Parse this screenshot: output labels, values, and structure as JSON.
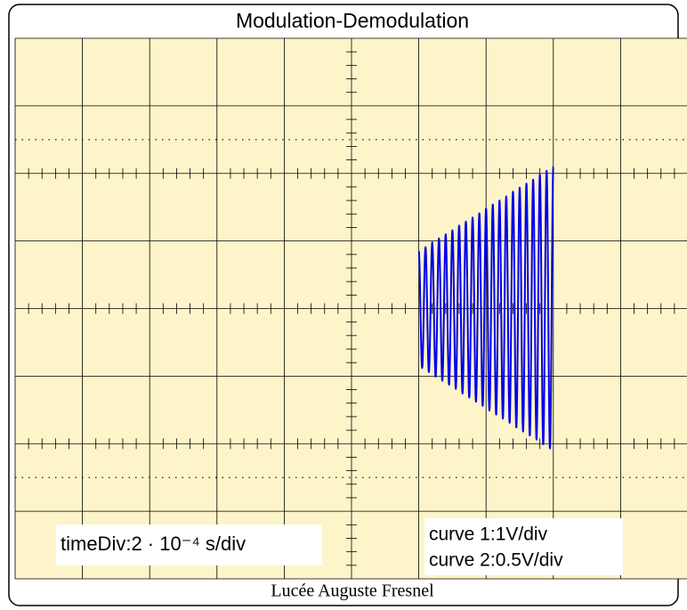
{
  "chart_data": {
    "type": "line",
    "title": "Modulation-Demodulation",
    "footer": "Lucée Auguste Fresnel",
    "annotations": {
      "time_div": "timeDiv:2 · 10⁻⁴ s/div",
      "curve1": "curve 1:1V/div",
      "curve2": "curve 2:0.5V/div"
    },
    "xlim": [
      -5,
      5
    ],
    "ylim": [
      -4,
      4
    ],
    "xticks": [
      -5,
      -4,
      -3,
      -2,
      -1,
      0,
      1,
      2,
      3,
      4,
      5
    ],
    "yticks": [
      -4,
      -3,
      -2,
      -1,
      0,
      1,
      2,
      3,
      4
    ],
    "dotted_levels": [
      -2.5,
      2.5
    ],
    "grid": true,
    "background": "#fdf5c9",
    "x": [
      1,
      1.05,
      1.1,
      1.15,
      1.2,
      1.25,
      1.3,
      1.35,
      1.4,
      1.45,
      1.5,
      1.55,
      1.6,
      1.65,
      1.7,
      1.75,
      1.8,
      1.85,
      1.9,
      1.95,
      2,
      2.05,
      2.1,
      2.15,
      2.2,
      2.25,
      2.3,
      2.35,
      2.4,
      2.45,
      2.5,
      2.55,
      2.6,
      2.65,
      2.7,
      2.75,
      2.8,
      2.85,
      2.9,
      2.95,
      3
    ],
    "series": [
      {
        "color": "#0000ee",
        "values": [
          0.85,
          -0.88,
          0.91,
          -0.94,
          0.98,
          -1.01,
          1.04,
          -1.07,
          1.1,
          -1.13,
          1.16,
          -1.19,
          1.23,
          -1.26,
          1.29,
          -1.32,
          1.35,
          -1.38,
          1.41,
          -1.44,
          1.48,
          -1.51,
          1.54,
          -1.57,
          1.6,
          -1.63,
          1.66,
          -1.69,
          1.73,
          -1.76,
          1.79,
          -1.82,
          1.85,
          -1.88,
          1.91,
          -1.94,
          1.98,
          -2.01,
          2.04,
          -2.07,
          2.1
        ]
      }
    ]
  }
}
